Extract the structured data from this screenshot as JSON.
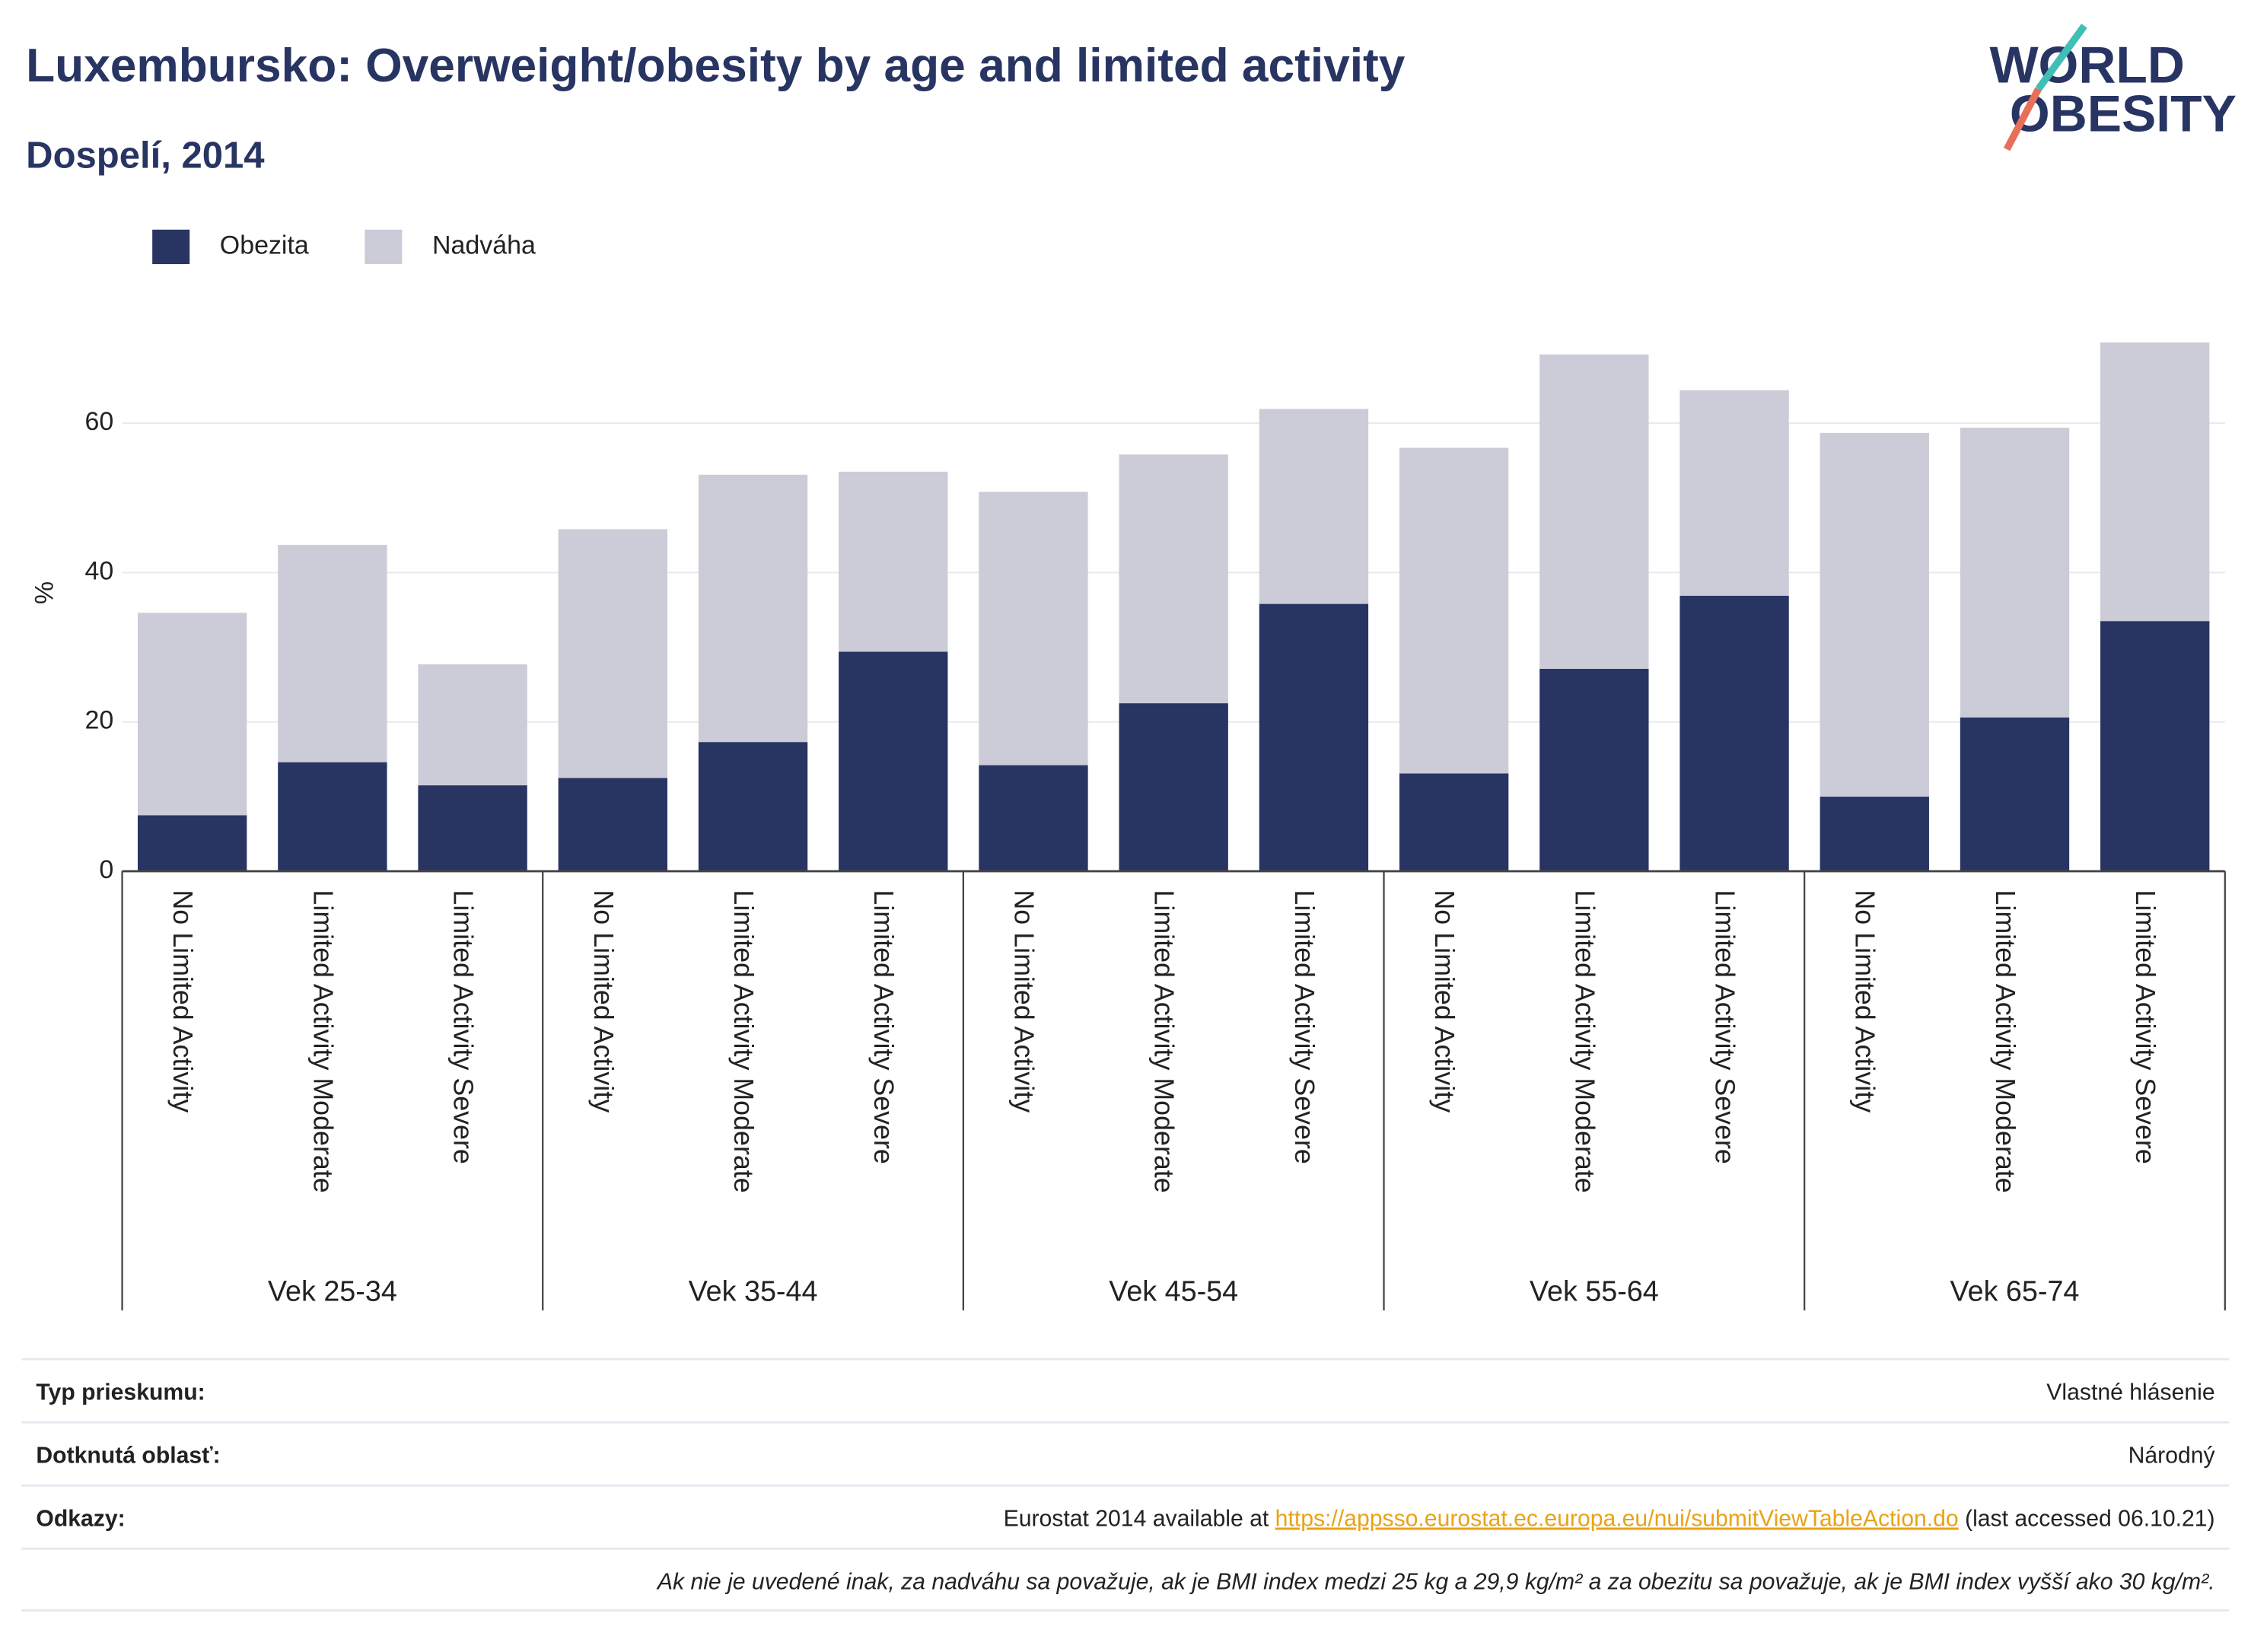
{
  "chart_data": {
    "type": "stacked_bar",
    "title": "Luxembursko: Overweight/obesity by age and limited activity",
    "subtitle": "Dospelí, 2014",
    "y_label": "%",
    "categories": [
      "No Limited Activity",
      "Limited Activity Moderate",
      "Limited Activity Severe",
      "No Limited Activity",
      "Limited Activity Moderate",
      "Limited Activity Severe",
      "No Limited Activity",
      "Limited Activity Moderate",
      "Limited Activity Severe",
      "No Limited Activity",
      "Limited Activity Moderate",
      "Limited Activity Severe",
      "No Limited Activity",
      "Limited Activity Moderate",
      "Limited Activity Severe"
    ],
    "groups": [
      "Vek 25-34",
      "Vek 35-44",
      "Vek 45-54",
      "Vek 55-64",
      "Vek 65-74"
    ],
    "series": [
      {
        "name": "Obezita",
        "color": "#283563",
        "values": [
          7.5,
          14.6,
          11.5,
          12.5,
          17.3,
          29.4,
          14.2,
          22.5,
          35.8,
          13.1,
          27.1,
          36.9,
          10.0,
          20.6,
          33.5
        ]
      },
      {
        "name": "Nadváha",
        "color": "#cbccd8",
        "values": [
          27.1,
          29.1,
          16.2,
          33.3,
          35.8,
          24.1,
          36.6,
          33.3,
          26.1,
          43.6,
          42.1,
          27.5,
          48.7,
          38.8,
          37.3
        ]
      }
    ],
    "ylim": [
      0,
      74
    ],
    "yticks": [
      0,
      20,
      40,
      60
    ],
    "grid": true
  },
  "logo": [
    "WORLD",
    "OBESITY"
  ],
  "footer": {
    "rows": [
      {
        "label": "Typ prieskumu:",
        "value": "Vlastné hlásenie"
      },
      {
        "label": "Dotknutá oblasť:",
        "value": "Národný"
      },
      {
        "label": "Odkazy:",
        "value_prefix": "Eurostat 2014 available at ",
        "link": "https://appsso.eurostat.ec.europa.eu/nui/submitViewTableAction.do",
        "value_suffix": " (last accessed 06.10.21)"
      }
    ],
    "note": "Ak nie je uvedené inak, za nadváhu sa považuje, ak je BMI index medzi 25 kg a 29,9 kg/m² a za obezitu sa považuje, ak je BMI index vyšší ako 30 kg/m²."
  }
}
